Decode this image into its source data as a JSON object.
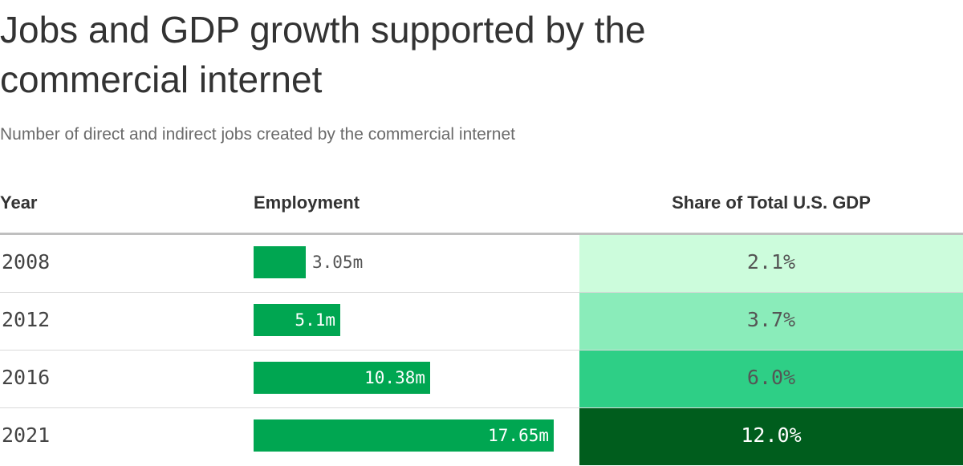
{
  "chart_data": {
    "type": "table",
    "title": "Jobs and GDP growth supported by the commercial internet",
    "subtitle": "Number of direct and indirect jobs created by the commercial internet",
    "columns": [
      "Year",
      "Employment",
      "Share of Total U.S. GDP"
    ],
    "employment_max": 17.65,
    "rows": [
      {
        "year": "2008",
        "employment": 3.05,
        "employment_label": "3.05m",
        "gdp_share": 2.1,
        "gdp_label": "2.1%",
        "gdp_color": "#ccfcdc"
      },
      {
        "year": "2012",
        "employment": 5.1,
        "employment_label": "5.1m",
        "gdp_share": 3.7,
        "gdp_label": "3.7%",
        "gdp_color": "#8aecba"
      },
      {
        "year": "2016",
        "employment": 10.38,
        "employment_label": "10.38m",
        "gdp_share": 6.0,
        "gdp_label": "6.0%",
        "gdp_color": "#2ecf86"
      },
      {
        "year": "2021",
        "employment": 17.65,
        "employment_label": "17.65m",
        "gdp_share": 12.0,
        "gdp_label": "12.0%",
        "gdp_color": "#005d1d"
      }
    ]
  },
  "colors": {
    "bar": "#00a651",
    "label_inside": "#ffffff",
    "label_outside": "#555555",
    "gdp_text_light": "#555555",
    "gdp_text_dark": "#ffffff"
  }
}
